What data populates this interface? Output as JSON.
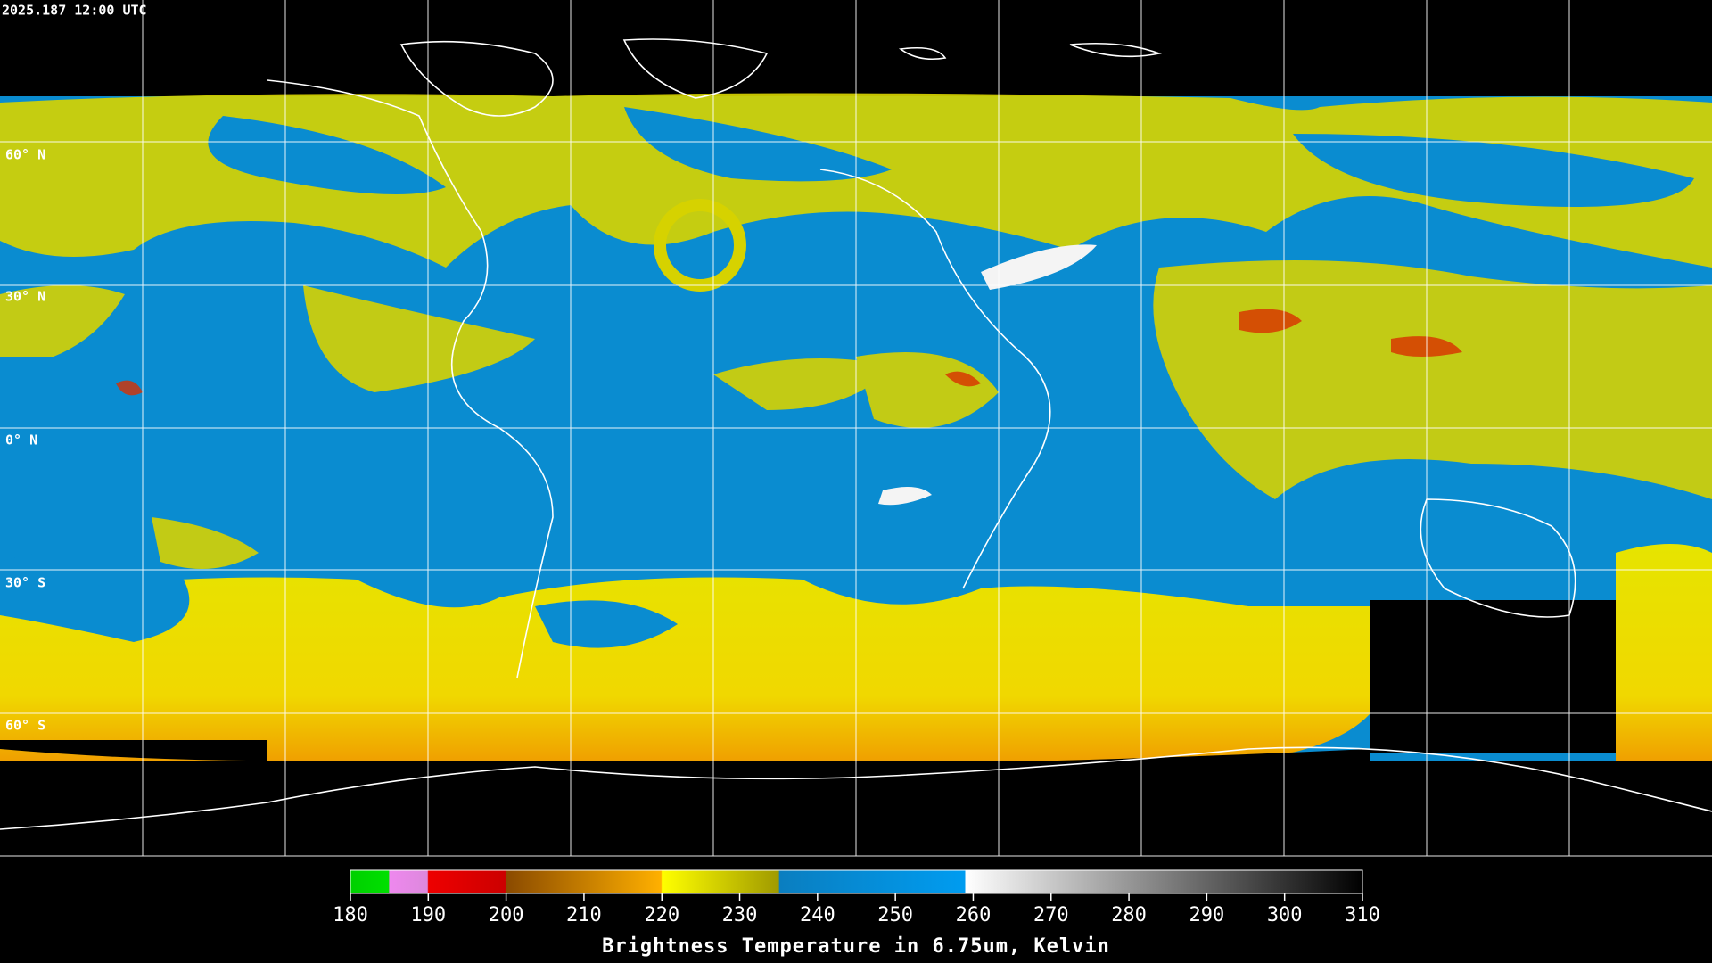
{
  "timestamp": "2025.187 12:00 UTC",
  "lat_labels": [
    "60° N",
    "30° N",
    "0° N",
    "30° S",
    "60° S"
  ],
  "colorbar": {
    "title": "Brightness Temperature in 6.75um, Kelvin",
    "lim": [
      180,
      310
    ],
    "ticks": [
      180,
      190,
      200,
      210,
      220,
      230,
      240,
      250,
      260,
      270,
      280,
      290,
      300,
      310
    ]
  }
}
